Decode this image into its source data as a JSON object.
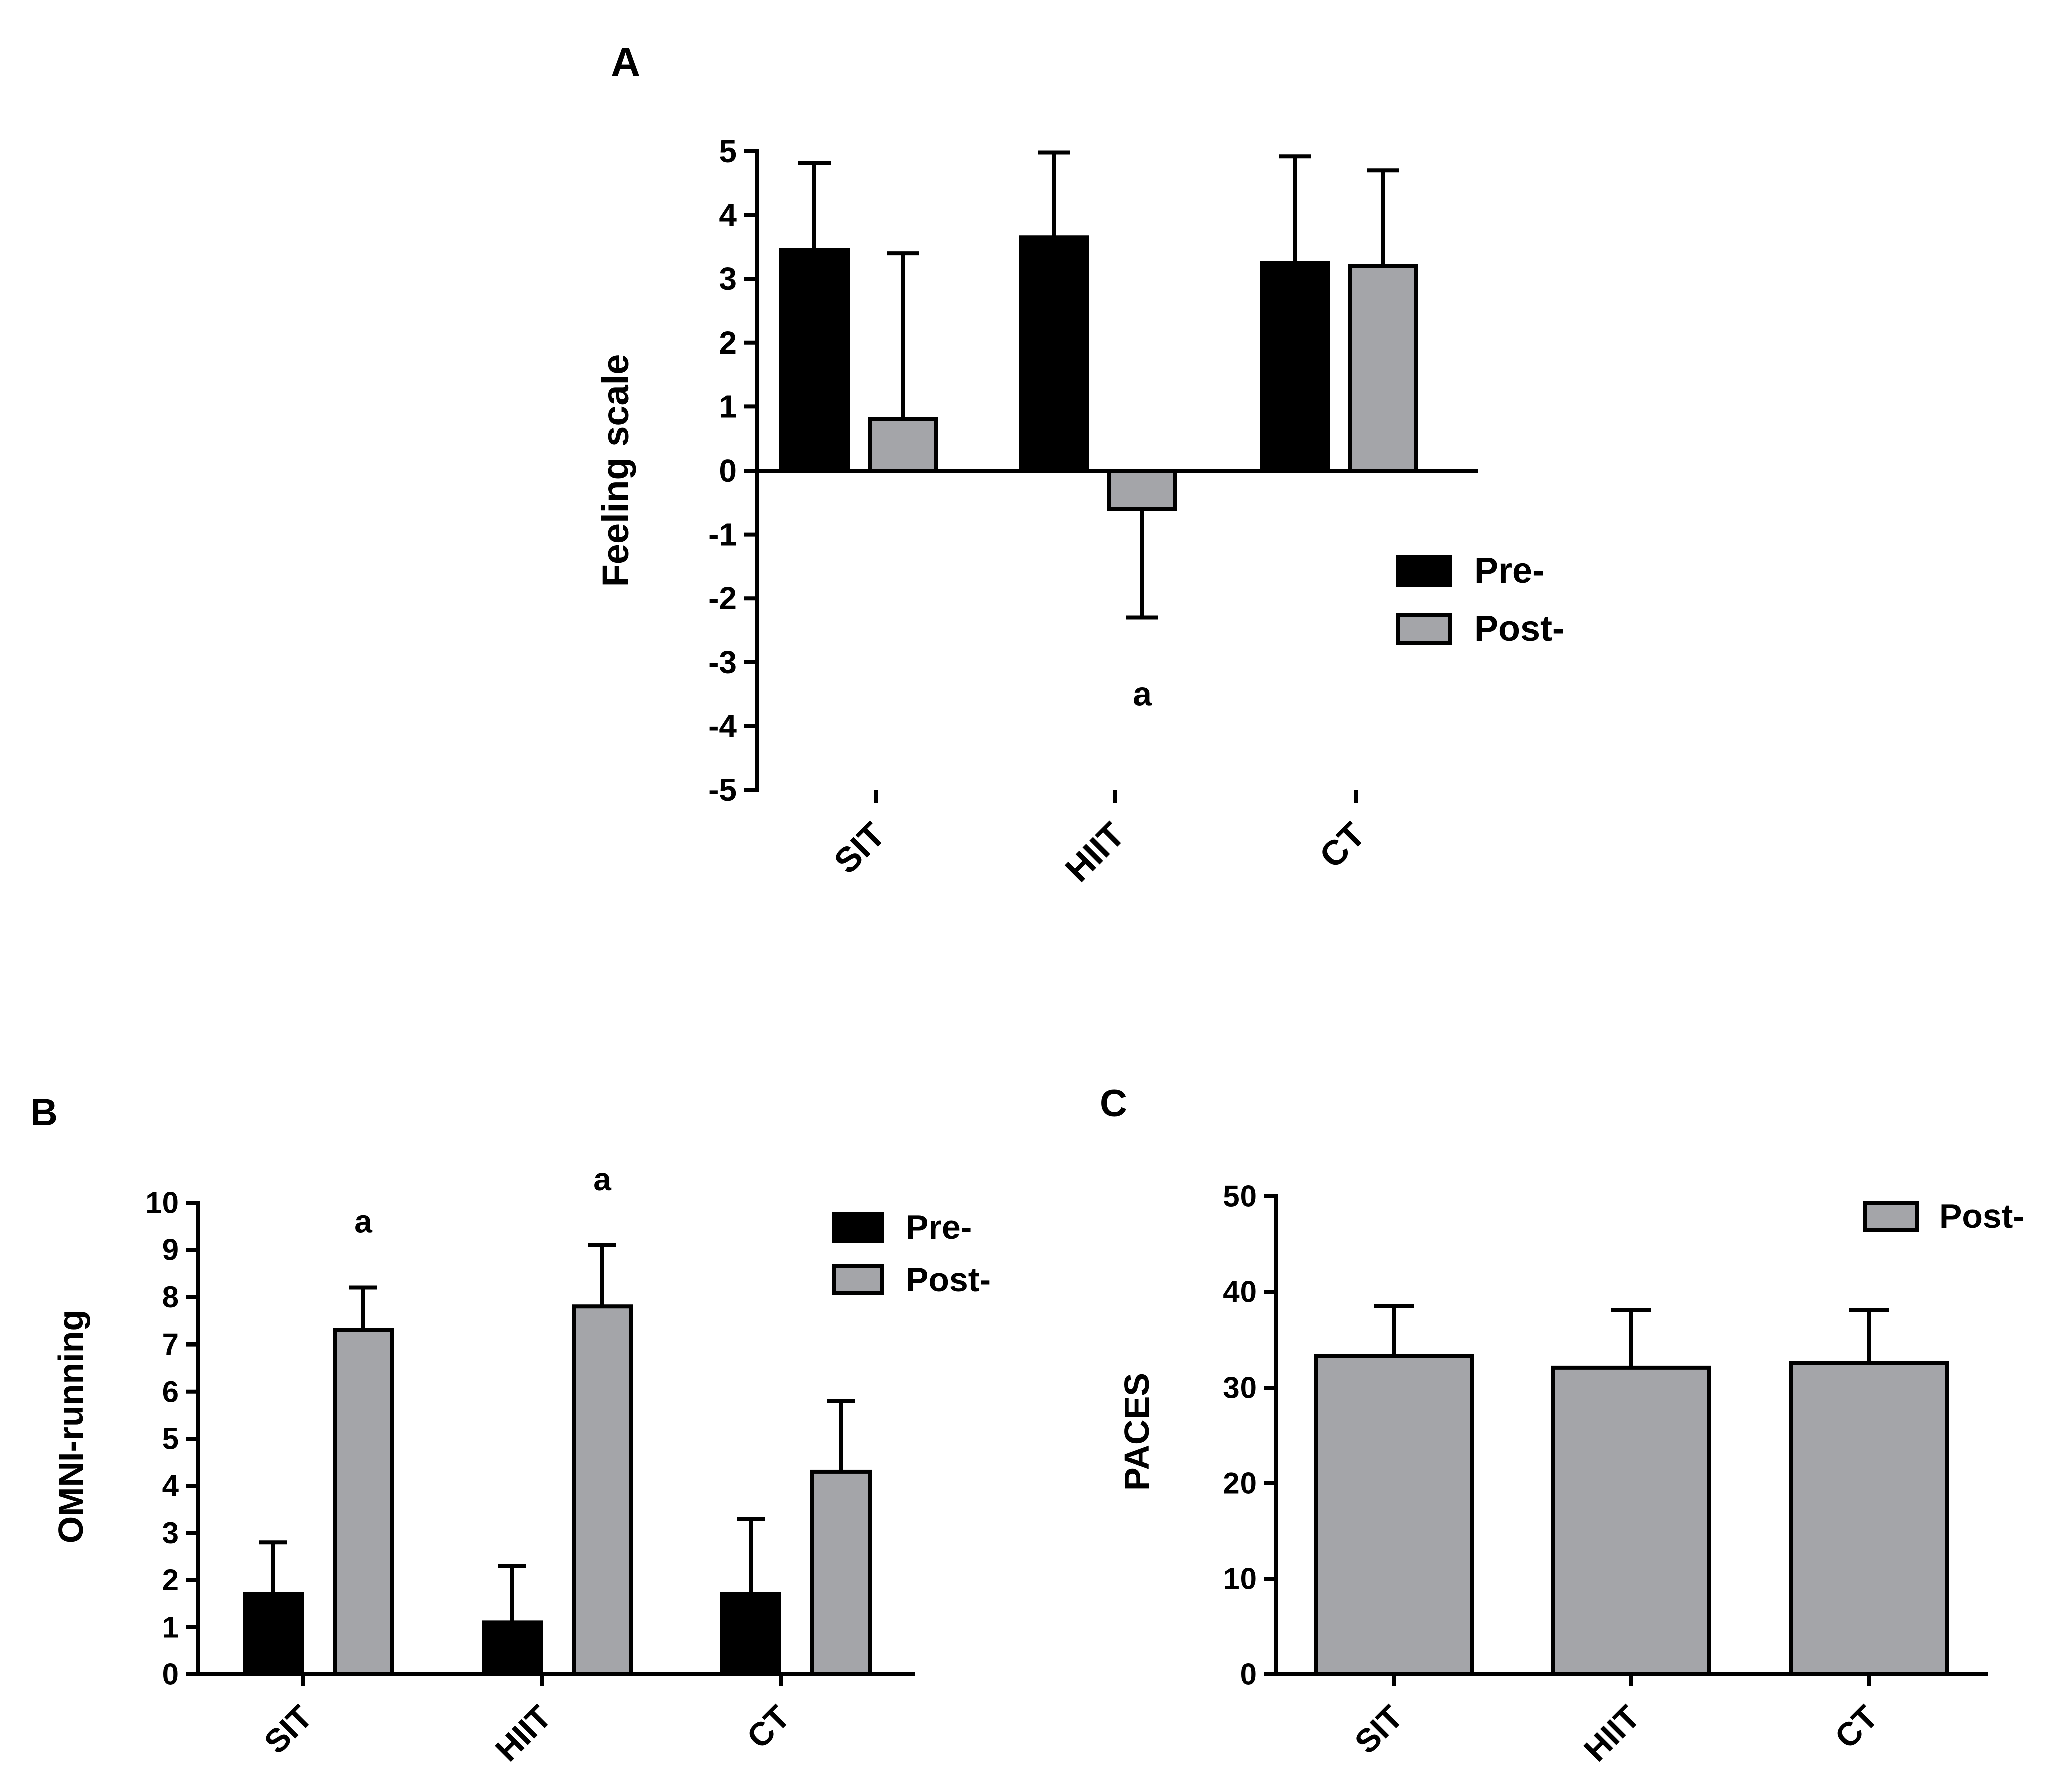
{
  "colors": {
    "pre": "#000000",
    "post": "#a4a5a9",
    "axis": "#000000",
    "background": "#ffffff"
  },
  "chart_data": [
    {
      "panel": "A",
      "type": "bar",
      "title": "",
      "xlabel": "",
      "ylabel": "Feeling scale",
      "categories": [
        "SIT",
        "HIIT",
        "CT"
      ],
      "ylim": [
        -5,
        5
      ],
      "yticks": [
        -5,
        -4,
        -3,
        -2,
        -1,
        0,
        1,
        2,
        3,
        4,
        5
      ],
      "series": [
        {
          "name": "Pre-",
          "values": [
            3.45,
            3.65,
            3.25
          ],
          "error": [
            1.37,
            1.33,
            1.67
          ]
        },
        {
          "name": "Post-",
          "values": [
            0.8,
            -0.6,
            3.2
          ],
          "error": [
            2.6,
            1.7,
            1.5
          ]
        }
      ],
      "annotations": [
        {
          "text": "a",
          "category": "HIIT",
          "series": "Post-",
          "y": -3.5
        }
      ],
      "legend": [
        "Pre-",
        "Post-"
      ],
      "legend_position": "right"
    },
    {
      "panel": "B",
      "type": "bar",
      "title": "",
      "xlabel": "",
      "ylabel": "OMNI-running",
      "categories": [
        "SIT",
        "HIIT",
        "CT"
      ],
      "ylim": [
        0,
        10
      ],
      "yticks": [
        0,
        1,
        2,
        3,
        4,
        5,
        6,
        7,
        8,
        9,
        10
      ],
      "series": [
        {
          "name": "Pre-",
          "values": [
            1.7,
            1.1,
            1.7
          ],
          "error": [
            1.1,
            1.2,
            1.6
          ]
        },
        {
          "name": "Post-",
          "values": [
            7.3,
            7.8,
            4.3
          ],
          "error": [
            0.9,
            1.3,
            1.5
          ]
        }
      ],
      "annotations": [
        {
          "text": "a",
          "category": "SIT",
          "series": "Post-",
          "y": 9.6
        },
        {
          "text": "a",
          "category": "HIIT",
          "series": "Post-",
          "y": 10.5
        }
      ],
      "legend": [
        "Pre-",
        "Post-"
      ],
      "legend_position": "top-right"
    },
    {
      "panel": "C",
      "type": "bar",
      "title": "",
      "xlabel": "",
      "ylabel": "PACES",
      "categories": [
        "SIT",
        "HIIT",
        "CT"
      ],
      "ylim": [
        0,
        50
      ],
      "yticks": [
        0,
        10,
        20,
        30,
        40,
        50
      ],
      "series": [
        {
          "name": "Post-",
          "values": [
            33.3,
            32.1,
            32.6
          ],
          "error": [
            5.2,
            6.0,
            5.5
          ]
        }
      ],
      "annotations": [],
      "legend": [
        "Post-"
      ],
      "legend_position": "top-right"
    }
  ]
}
